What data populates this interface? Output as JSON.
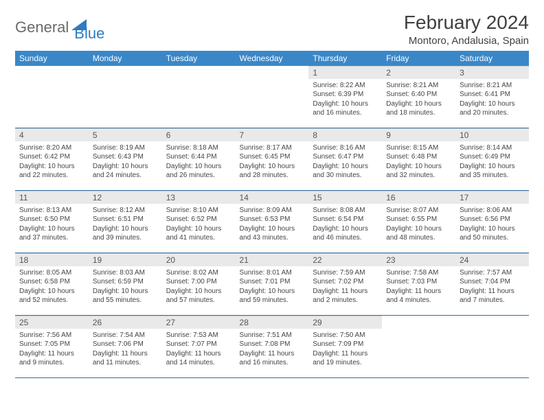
{
  "logo": {
    "general": "General",
    "blue": "Blue"
  },
  "title": {
    "month": "February 2024",
    "location": "Montoro, Andalusia, Spain"
  },
  "colors": {
    "header_bg": "#3a87c8",
    "header_text": "#ffffff",
    "daynum_bg": "#e9e9e9",
    "border": "#2f6fa3",
    "logo_gray": "#6a6a6a",
    "logo_blue": "#2f7bbf"
  },
  "weekdays": [
    "Sunday",
    "Monday",
    "Tuesday",
    "Wednesday",
    "Thursday",
    "Friday",
    "Saturday"
  ],
  "weeks": [
    [
      null,
      null,
      null,
      null,
      {
        "n": "1",
        "sr": "Sunrise: 8:22 AM",
        "ss": "Sunset: 6:39 PM",
        "dl1": "Daylight: 10 hours",
        "dl2": "and 16 minutes."
      },
      {
        "n": "2",
        "sr": "Sunrise: 8:21 AM",
        "ss": "Sunset: 6:40 PM",
        "dl1": "Daylight: 10 hours",
        "dl2": "and 18 minutes."
      },
      {
        "n": "3",
        "sr": "Sunrise: 8:21 AM",
        "ss": "Sunset: 6:41 PM",
        "dl1": "Daylight: 10 hours",
        "dl2": "and 20 minutes."
      }
    ],
    [
      {
        "n": "4",
        "sr": "Sunrise: 8:20 AM",
        "ss": "Sunset: 6:42 PM",
        "dl1": "Daylight: 10 hours",
        "dl2": "and 22 minutes."
      },
      {
        "n": "5",
        "sr": "Sunrise: 8:19 AM",
        "ss": "Sunset: 6:43 PM",
        "dl1": "Daylight: 10 hours",
        "dl2": "and 24 minutes."
      },
      {
        "n": "6",
        "sr": "Sunrise: 8:18 AM",
        "ss": "Sunset: 6:44 PM",
        "dl1": "Daylight: 10 hours",
        "dl2": "and 26 minutes."
      },
      {
        "n": "7",
        "sr": "Sunrise: 8:17 AM",
        "ss": "Sunset: 6:45 PM",
        "dl1": "Daylight: 10 hours",
        "dl2": "and 28 minutes."
      },
      {
        "n": "8",
        "sr": "Sunrise: 8:16 AM",
        "ss": "Sunset: 6:47 PM",
        "dl1": "Daylight: 10 hours",
        "dl2": "and 30 minutes."
      },
      {
        "n": "9",
        "sr": "Sunrise: 8:15 AM",
        "ss": "Sunset: 6:48 PM",
        "dl1": "Daylight: 10 hours",
        "dl2": "and 32 minutes."
      },
      {
        "n": "10",
        "sr": "Sunrise: 8:14 AM",
        "ss": "Sunset: 6:49 PM",
        "dl1": "Daylight: 10 hours",
        "dl2": "and 35 minutes."
      }
    ],
    [
      {
        "n": "11",
        "sr": "Sunrise: 8:13 AM",
        "ss": "Sunset: 6:50 PM",
        "dl1": "Daylight: 10 hours",
        "dl2": "and 37 minutes."
      },
      {
        "n": "12",
        "sr": "Sunrise: 8:12 AM",
        "ss": "Sunset: 6:51 PM",
        "dl1": "Daylight: 10 hours",
        "dl2": "and 39 minutes."
      },
      {
        "n": "13",
        "sr": "Sunrise: 8:10 AM",
        "ss": "Sunset: 6:52 PM",
        "dl1": "Daylight: 10 hours",
        "dl2": "and 41 minutes."
      },
      {
        "n": "14",
        "sr": "Sunrise: 8:09 AM",
        "ss": "Sunset: 6:53 PM",
        "dl1": "Daylight: 10 hours",
        "dl2": "and 43 minutes."
      },
      {
        "n": "15",
        "sr": "Sunrise: 8:08 AM",
        "ss": "Sunset: 6:54 PM",
        "dl1": "Daylight: 10 hours",
        "dl2": "and 46 minutes."
      },
      {
        "n": "16",
        "sr": "Sunrise: 8:07 AM",
        "ss": "Sunset: 6:55 PM",
        "dl1": "Daylight: 10 hours",
        "dl2": "and 48 minutes."
      },
      {
        "n": "17",
        "sr": "Sunrise: 8:06 AM",
        "ss": "Sunset: 6:56 PM",
        "dl1": "Daylight: 10 hours",
        "dl2": "and 50 minutes."
      }
    ],
    [
      {
        "n": "18",
        "sr": "Sunrise: 8:05 AM",
        "ss": "Sunset: 6:58 PM",
        "dl1": "Daylight: 10 hours",
        "dl2": "and 52 minutes."
      },
      {
        "n": "19",
        "sr": "Sunrise: 8:03 AM",
        "ss": "Sunset: 6:59 PM",
        "dl1": "Daylight: 10 hours",
        "dl2": "and 55 minutes."
      },
      {
        "n": "20",
        "sr": "Sunrise: 8:02 AM",
        "ss": "Sunset: 7:00 PM",
        "dl1": "Daylight: 10 hours",
        "dl2": "and 57 minutes."
      },
      {
        "n": "21",
        "sr": "Sunrise: 8:01 AM",
        "ss": "Sunset: 7:01 PM",
        "dl1": "Daylight: 10 hours",
        "dl2": "and 59 minutes."
      },
      {
        "n": "22",
        "sr": "Sunrise: 7:59 AM",
        "ss": "Sunset: 7:02 PM",
        "dl1": "Daylight: 11 hours",
        "dl2": "and 2 minutes."
      },
      {
        "n": "23",
        "sr": "Sunrise: 7:58 AM",
        "ss": "Sunset: 7:03 PM",
        "dl1": "Daylight: 11 hours",
        "dl2": "and 4 minutes."
      },
      {
        "n": "24",
        "sr": "Sunrise: 7:57 AM",
        "ss": "Sunset: 7:04 PM",
        "dl1": "Daylight: 11 hours",
        "dl2": "and 7 minutes."
      }
    ],
    [
      {
        "n": "25",
        "sr": "Sunrise: 7:56 AM",
        "ss": "Sunset: 7:05 PM",
        "dl1": "Daylight: 11 hours",
        "dl2": "and 9 minutes."
      },
      {
        "n": "26",
        "sr": "Sunrise: 7:54 AM",
        "ss": "Sunset: 7:06 PM",
        "dl1": "Daylight: 11 hours",
        "dl2": "and 11 minutes."
      },
      {
        "n": "27",
        "sr": "Sunrise: 7:53 AM",
        "ss": "Sunset: 7:07 PM",
        "dl1": "Daylight: 11 hours",
        "dl2": "and 14 minutes."
      },
      {
        "n": "28",
        "sr": "Sunrise: 7:51 AM",
        "ss": "Sunset: 7:08 PM",
        "dl1": "Daylight: 11 hours",
        "dl2": "and 16 minutes."
      },
      {
        "n": "29",
        "sr": "Sunrise: 7:50 AM",
        "ss": "Sunset: 7:09 PM",
        "dl1": "Daylight: 11 hours",
        "dl2": "and 19 minutes."
      },
      null,
      null
    ]
  ]
}
